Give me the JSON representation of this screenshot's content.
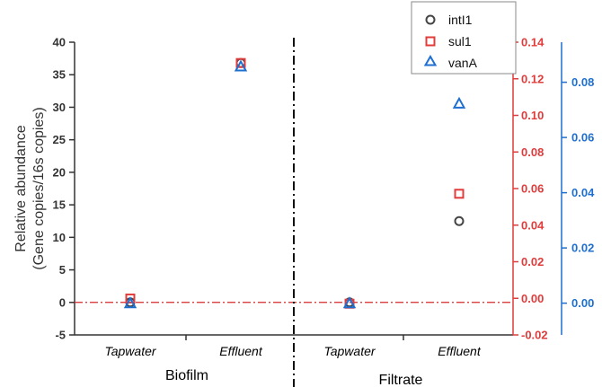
{
  "chart_data": {
    "type": "scatter",
    "ylabel_line1": "Relative abundance",
    "ylabel_line2": "(Gene copies/16s copies)",
    "groups": [
      "Biofilm",
      "Filtrate"
    ],
    "categories": [
      "Tapwater",
      "Effluent",
      "Tapwater",
      "Effluent"
    ],
    "axes": {
      "left": {
        "ylim": [
          -5,
          40
        ],
        "ticks": [
          -5,
          0,
          5,
          10,
          15,
          20,
          25,
          30,
          35,
          40
        ],
        "tick_labels": [
          "-5",
          "0",
          "5",
          "10",
          "15",
          "20",
          "25",
          "30",
          "35",
          "40"
        ],
        "color": "#333333"
      },
      "right_red": {
        "ylim": [
          -0.02,
          0.14
        ],
        "ticks": [
          -0.02,
          0.0,
          0.02,
          0.04,
          0.06,
          0.08,
          0.1,
          0.12,
          0.14
        ],
        "tick_labels": [
          "-0.02",
          "0.00",
          "0.02",
          "0.04",
          "0.06",
          "0.08",
          "0.10",
          "0.12",
          "0.14"
        ],
        "color": "#e03c3c"
      },
      "right_blue": {
        "ylim": [
          -0.0115,
          0.0945
        ],
        "ticks": [
          0.0,
          0.02,
          0.04,
          0.06,
          0.08
        ],
        "tick_labels": [
          "0.00",
          "0.02",
          "0.04",
          "0.06",
          "0.08"
        ],
        "color": "#1f6fd0"
      }
    },
    "series": [
      {
        "name": "intI1",
        "marker": "circle",
        "color": "#444444",
        "axis": "left",
        "values": [
          0.0,
          36.8,
          0.0,
          12.5
        ]
      },
      {
        "name": "sul1",
        "marker": "square",
        "color": "#e03c3c",
        "axis": "left",
        "values": [
          0.6,
          36.8,
          -0.2,
          16.7
        ]
      },
      {
        "name": "vanA",
        "marker": "triangle",
        "color": "#1f6fd0",
        "axis": "left",
        "values": [
          -0.2,
          36.2,
          -0.2,
          30.5
        ]
      }
    ],
    "reference_line": {
      "y": 0,
      "style": "dash-dot",
      "color": "#d62728"
    },
    "divider": {
      "style": "dash-dot",
      "color": "#111111"
    },
    "legend_position": "top-right"
  }
}
